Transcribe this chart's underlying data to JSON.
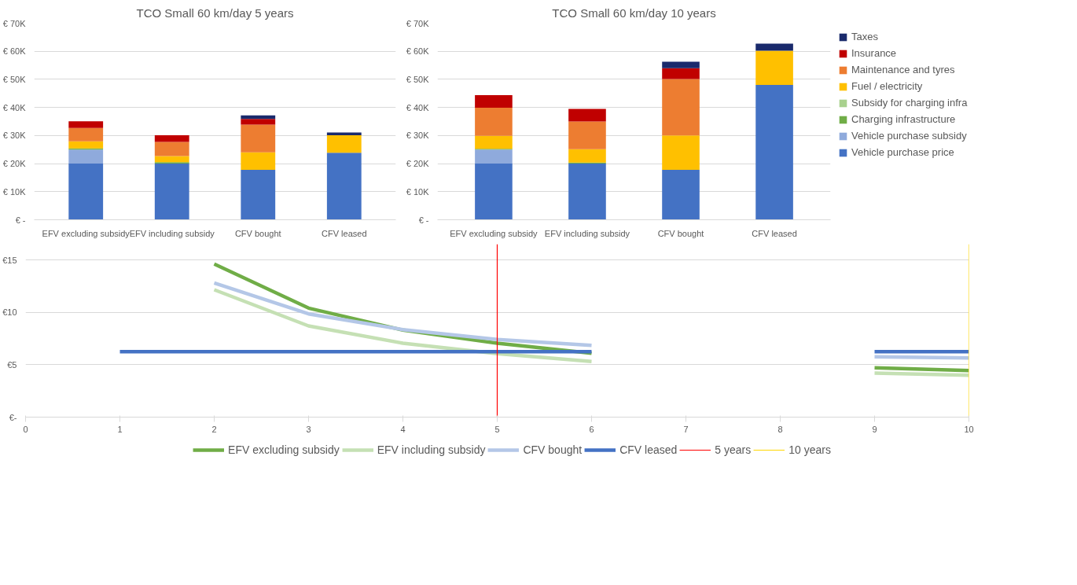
{
  "chart_data": [
    {
      "type": "bar",
      "stacked": true,
      "title": "TCO Small 60 km/day 5 years",
      "categories": [
        "EFV excluding subsidy",
        "EFV including subsidy",
        "CFV bought",
        "CFV leased"
      ],
      "ylim": [
        0,
        70
      ],
      "yticks": [
        {
          "value": 0,
          "label": "€ -"
        },
        {
          "value": 10,
          "label": "€ 10K"
        },
        {
          "value": 20,
          "label": "€ 20K"
        },
        {
          "value": 30,
          "label": "€ 30K"
        },
        {
          "value": 40,
          "label": "€ 40K"
        },
        {
          "value": 50,
          "label": "€ 50K"
        },
        {
          "value": 60,
          "label": "€ 60K"
        },
        {
          "value": 70,
          "label": "€ 70K"
        }
      ],
      "grid": "y",
      "series": [
        {
          "color": "#4472c4",
          "values": [
            20.0,
            20.0,
            17.8,
            23.9
          ]
        },
        {
          "color": "#8faadc",
          "values": [
            5.0,
            0,
            0,
            0
          ]
        },
        {
          "color": "#70ad47",
          "values": [
            0.4,
            0.5,
            0,
            0
          ]
        },
        {
          "color": "#a9d18e",
          "values": [
            0,
            0,
            0,
            0
          ]
        },
        {
          "color": "#ffc000",
          "values": [
            2.5,
            2.2,
            6.2,
            6.2
          ]
        },
        {
          "color": "#ed7d31",
          "values": [
            4.8,
            5.0,
            9.9,
            0
          ]
        },
        {
          "color": "#c00000",
          "values": [
            2.4,
            2.4,
            2.0,
            0
          ]
        },
        {
          "color": "#1a2a6c",
          "values": [
            0,
            0,
            1.3,
            1.0
          ]
        }
      ]
    },
    {
      "type": "bar",
      "stacked": true,
      "title": "TCO Small 60 km/day 10 years",
      "categories": [
        "EFV excluding subsidy",
        "EFV including subsidy",
        "CFV bought",
        "CFV leased"
      ],
      "ylim": [
        0,
        70
      ],
      "yticks": [
        {
          "value": 0,
          "label": "€ -"
        },
        {
          "value": 10,
          "label": "€ 10K"
        },
        {
          "value": 20,
          "label": "€ 20K"
        },
        {
          "value": 30,
          "label": "€ 30K"
        },
        {
          "value": 40,
          "label": "€ 40K"
        },
        {
          "value": 50,
          "label": "€ 50K"
        },
        {
          "value": 60,
          "label": "€ 60K"
        },
        {
          "value": 70,
          "label": "€ 70K"
        }
      ],
      "grid": "y",
      "legend": "right",
      "series": [
        {
          "name": "Vehicle purchase price",
          "color": "#4472c4",
          "values": [
            20.0,
            20.0,
            17.8,
            48.0
          ]
        },
        {
          "name": "Vehicle purchase subsidy",
          "color": "#8faadc",
          "values": [
            5.0,
            0,
            0,
            0
          ]
        },
        {
          "name": "Charging infrastructure",
          "color": "#70ad47",
          "values": [
            0.3,
            0.4,
            0,
            0
          ]
        },
        {
          "name": "Subsidy for charging infra",
          "color": "#a9d18e",
          "values": [
            0,
            0,
            0,
            0
          ]
        },
        {
          "name": "Fuel / electricity",
          "color": "#ffc000",
          "values": [
            4.6,
            4.7,
            12.2,
            12.2
          ]
        },
        {
          "name": "Maintenance and tyres",
          "color": "#ed7d31",
          "values": [
            10.0,
            9.9,
            20.1,
            0
          ]
        },
        {
          "name": "Insurance",
          "color": "#c00000",
          "values": [
            4.5,
            4.5,
            3.9,
            0
          ]
        },
        {
          "name": "Taxes",
          "color": "#1a2a6c",
          "values": [
            0,
            0,
            2.3,
            2.5
          ]
        }
      ]
    },
    {
      "type": "line",
      "x": [
        1,
        2,
        3,
        4,
        5,
        6,
        7,
        8,
        9,
        10
      ],
      "xlim": [
        0,
        10
      ],
      "xticks": [
        0,
        1,
        2,
        3,
        4,
        5,
        6,
        7,
        8,
        9,
        10
      ],
      "ylim": [
        0,
        16.5
      ],
      "yticks": [
        {
          "value": 0,
          "label": "€-"
        },
        {
          "value": 5,
          "label": "€5"
        },
        {
          "value": 10,
          "label": "€10"
        },
        {
          "value": 15,
          "label": "€15"
        }
      ],
      "grid": "y",
      "legend": "bottom",
      "marker": "none",
      "line_style": "solid",
      "series": [
        {
          "name": "EFV excluding subsidy",
          "color": "#70ad47",
          "values": [
            null,
            14.6,
            10.4,
            8.3,
            7.05,
            6.1,
            null,
            null,
            4.7,
            4.45
          ]
        },
        {
          "name": "EFV including subsidy",
          "color": "#c5e0b4",
          "values": [
            null,
            12.15,
            8.7,
            7.05,
            6.05,
            5.3,
            null,
            null,
            4.2,
            4.0
          ]
        },
        {
          "name": "CFV bought",
          "color": "#b4c7e7",
          "values": [
            null,
            12.8,
            9.85,
            8.35,
            7.4,
            6.85,
            null,
            null,
            5.75,
            5.65
          ]
        },
        {
          "name": "CFV leased",
          "color": "#4472c4",
          "values": [
            6.25,
            6.25,
            6.25,
            6.25,
            6.25,
            6.25,
            null,
            null,
            6.25,
            6.25
          ]
        }
      ],
      "ref_lines": [
        {
          "axis": "x",
          "value": 5,
          "label": "5 years",
          "color": "#ff0000"
        },
        {
          "axis": "x",
          "value": 10,
          "label": "10 years",
          "color": "#ffd700"
        }
      ]
    }
  ]
}
